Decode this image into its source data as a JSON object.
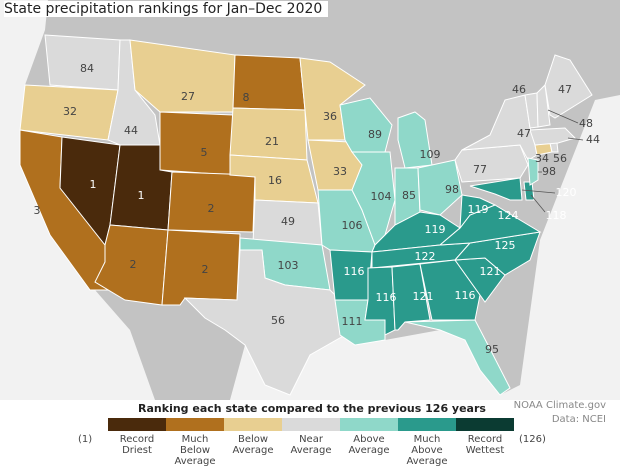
{
  "title": "State precipitation rankings for Jan–Dec 2020",
  "states": [
    {
      "rank": 84,
      "color": "#dadada"
    },
    {
      "rank": 32,
      "color": "#e8cf91"
    },
    {
      "rank": 3,
      "color": "#b0701e"
    },
    {
      "rank": 1,
      "color": "#4a2a0c"
    },
    {
      "rank": 44,
      "color": "#dadada"
    },
    {
      "rank": 27,
      "color": "#e8cf91"
    },
    {
      "rank": 5,
      "color": "#b0701e"
    },
    {
      "rank": 1,
      "color": "#4a2a0c"
    },
    {
      "rank": 2,
      "color": "#b0701e"
    },
    {
      "rank": 2,
      "color": "#b0701e"
    },
    {
      "rank": 2,
      "color": "#b0701e"
    },
    {
      "rank": 8,
      "color": "#b0701e"
    },
    {
      "rank": 21,
      "color": "#e8cf91"
    },
    {
      "rank": 16,
      "color": "#e8cf91"
    },
    {
      "rank": 49,
      "color": "#dadada"
    },
    {
      "rank": 103,
      "color": "#8fd8c9"
    },
    {
      "rank": 56,
      "color": "#dadada"
    },
    {
      "rank": 36,
      "color": "#e8cf91"
    },
    {
      "rank": 33,
      "color": "#e8cf91"
    },
    {
      "rank": 106,
      "color": "#8fd8c9"
    },
    {
      "rank": 116,
      "color": "#2a9a8c"
    },
    {
      "rank": 111,
      "color": "#8fd8c9"
    },
    {
      "rank": 89,
      "color": "#8fd8c9"
    },
    {
      "rank": 104,
      "color": "#8fd8c9"
    },
    {
      "rank": 109,
      "color": "#8fd8c9"
    },
    {
      "rank": 85,
      "color": "#8fd8c9"
    },
    {
      "rank": 98,
      "color": "#8fd8c9"
    },
    {
      "rank": 119,
      "color": "#2a9a8c"
    },
    {
      "rank": 122,
      "color": "#2a9a8c"
    },
    {
      "rank": 116,
      "color": "#2a9a8c"
    },
    {
      "rank": 121,
      "color": "#2a9a8c"
    },
    {
      "rank": 116,
      "color": "#2a9a8c"
    },
    {
      "rank": 95,
      "color": "#8fd8c9"
    },
    {
      "rank": 121,
      "color": "#2a9a8c"
    },
    {
      "rank": 125,
      "color": "#2a9a8c"
    },
    {
      "rank": 124,
      "color": "#2a9a8c"
    },
    {
      "rank": 119,
      "color": "#2a9a8c"
    },
    {
      "rank": 77,
      "color": "#dadada"
    },
    {
      "rank": 47,
      "color": "#dadada"
    },
    {
      "rank": 120,
      "color": "#2a9a8c"
    },
    {
      "rank": 118,
      "color": "#2a9a8c"
    },
    {
      "rank": 98,
      "color": "#8fd8c9"
    },
    {
      "rank": 34,
      "color": "#e8cf91"
    },
    {
      "rank": 56,
      "color": "#dadada"
    },
    {
      "rank": 44,
      "color": "#dadada"
    },
    {
      "rank": 46,
      "color": "#dadada"
    },
    {
      "rank": 48,
      "color": "#dadada"
    },
    {
      "rank": 47,
      "color": "#dadada"
    }
  ],
  "legend": {
    "title": "Ranking each state compared to the previous 126 years",
    "min_label": "(1)",
    "max_label": "(126)",
    "items": [
      {
        "label": "Record Driest",
        "color": "#4a2a0c"
      },
      {
        "label": "Much Below Average",
        "color": "#b0701e"
      },
      {
        "label": "Below Average",
        "color": "#e8cf91"
      },
      {
        "label": "Near Average",
        "color": "#dadada"
      },
      {
        "label": "Above Average",
        "color": "#8fd8c9"
      },
      {
        "label": "Much Above Average",
        "color": "#2a9a8c"
      },
      {
        "label": "Record Wettest",
        "color": "#0b3b32"
      }
    ]
  },
  "credits": [
    "NOAA Climate.gov",
    "Data: NCEI"
  ]
}
